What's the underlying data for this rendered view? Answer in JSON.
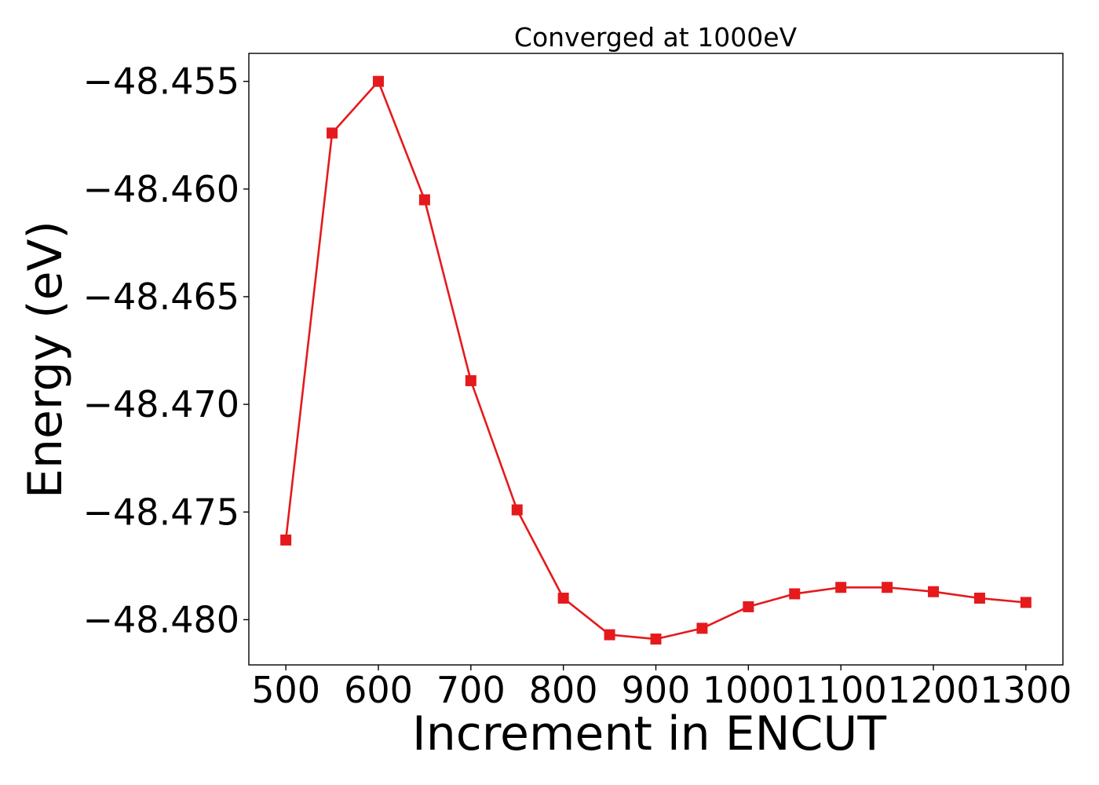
{
  "chart_data": {
    "type": "line",
    "title": "Converged at 1000eV",
    "xlabel": "Increment in ENCUT",
    "ylabel": "Energy (eV)",
    "x": [
      500,
      550,
      600,
      650,
      700,
      750,
      800,
      850,
      900,
      950,
      1000,
      1050,
      1100,
      1150,
      1200,
      1250,
      1300
    ],
    "series": [
      {
        "values": [
          -48.4763,
          -48.4574,
          -48.455,
          -48.4605,
          -48.4689,
          -48.4749,
          -48.479,
          -48.4807,
          -48.4809,
          -48.4804,
          -48.4794,
          -48.4788,
          -48.4785,
          -48.4785,
          -48.4787,
          -48.479,
          -48.4792
        ],
        "color": "#e41a1c",
        "marker": "square"
      }
    ],
    "xticks": [
      500,
      600,
      700,
      800,
      900,
      1000,
      1100,
      1200,
      1300
    ],
    "xtick_labels": [
      "500",
      "600",
      "700",
      "800",
      "900",
      "1000",
      "1100",
      "1200",
      "1300"
    ],
    "yticks": [
      -48.455,
      -48.46,
      -48.465,
      -48.47,
      -48.475,
      -48.48
    ],
    "ytick_labels": [
      "−48.455",
      "−48.460",
      "−48.465",
      "−48.470",
      "−48.475",
      "−48.480"
    ],
    "xlim": [
      460,
      1340
    ],
    "ylim": [
      -48.4821,
      -48.4537
    ],
    "grid": false,
    "legend": "none"
  }
}
